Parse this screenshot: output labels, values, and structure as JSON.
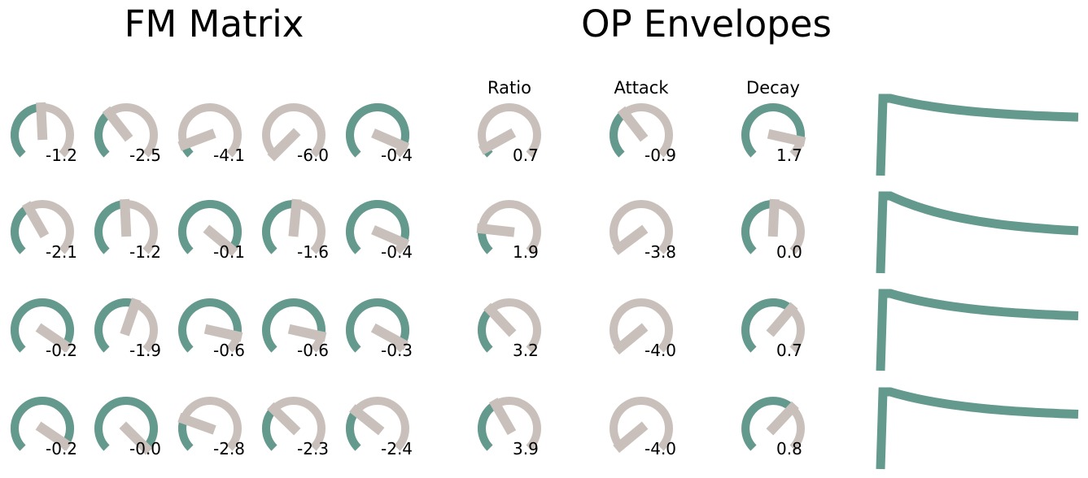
{
  "fm_matrix": {
    "title": "FM Matrix",
    "rows": [
      [
        -1.2,
        -2.5,
        -4.1,
        -6.0,
        -0.4
      ],
      [
        -2.1,
        -1.2,
        -0.1,
        -1.6,
        -0.4
      ],
      [
        -0.2,
        -1.9,
        -0.6,
        -0.6,
        -0.3
      ],
      [
        -0.2,
        -0.0,
        -2.8,
        -2.3,
        -2.4
      ]
    ],
    "labels": [
      [
        "-1.2",
        "-2.5",
        "-4.1",
        "-6.0",
        "-0.4"
      ],
      [
        "-2.1",
        "-1.2",
        "-0.1",
        "-1.6",
        "-0.4"
      ],
      [
        "-0.2",
        "-1.9",
        "-0.6",
        "-0.6",
        "-0.3"
      ],
      [
        "-0.2",
        "-0.0",
        "-2.8",
        "-2.3",
        "-2.4"
      ]
    ],
    "fill": [
      [
        0.49,
        0.36,
        0.09,
        0.0,
        0.92
      ],
      [
        0.39,
        0.49,
        0.98,
        0.52,
        0.92
      ],
      [
        0.96,
        0.57,
        0.88,
        0.88,
        0.94
      ],
      [
        0.96,
        1.0,
        0.24,
        0.33,
        0.31
      ]
    ]
  },
  "op_envelopes": {
    "title": "OP Envelopes",
    "columns": [
      "Ratio",
      "Attack",
      "Decay"
    ],
    "operators": [
      {
        "ratio": 0.7,
        "attack": -0.9,
        "decay": 1.7,
        "ratio_label": "0.7",
        "attack_label": "-0.9",
        "decay_label": "1.7",
        "ratio_fill": 0.06,
        "attack_fill": 0.36,
        "decay_fill": 0.88,
        "env_decay": 0.42
      },
      {
        "ratio": 1.9,
        "attack": -3.8,
        "decay": 0.0,
        "ratio_label": "1.9",
        "attack_label": "-3.8",
        "decay_label": "0.0",
        "ratio_fill": 0.19,
        "attack_fill": 0.03,
        "decay_fill": 0.51,
        "env_decay": 0.78
      },
      {
        "ratio": 3.2,
        "attack": -4.0,
        "decay": 0.7,
        "ratio_label": "3.2",
        "attack_label": "-4.0",
        "decay_label": "0.7",
        "ratio_fill": 0.34,
        "attack_fill": 0.02,
        "decay_fill": 0.65,
        "env_decay": 0.5
      },
      {
        "ratio": 3.9,
        "attack": -4.0,
        "decay": 0.8,
        "ratio_label": "3.9",
        "attack_label": "-4.0",
        "decay_label": "0.8",
        "ratio_fill": 0.39,
        "attack_fill": 0.02,
        "decay_fill": 0.66,
        "env_decay": 0.5
      }
    ]
  },
  "colors": {
    "value_arc": "#64998d",
    "track_arc": "#c9c0bb",
    "envelope": "#64998d",
    "text": "#000000"
  }
}
